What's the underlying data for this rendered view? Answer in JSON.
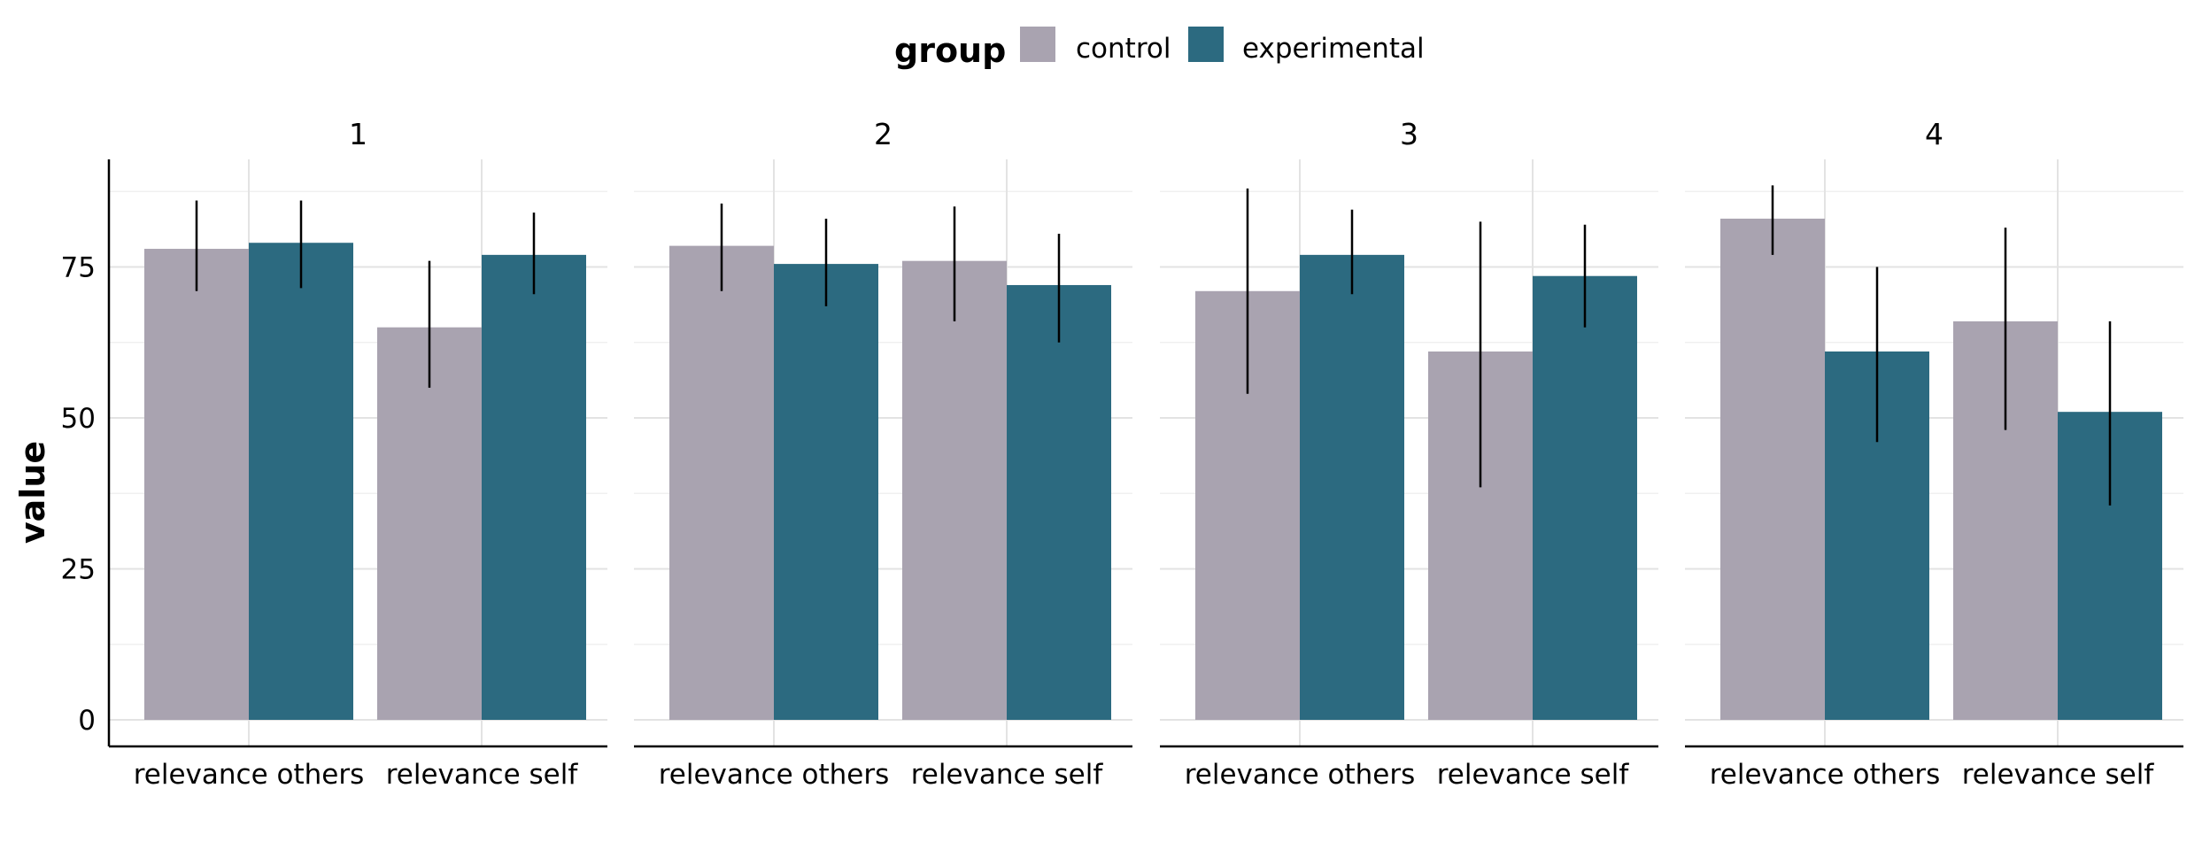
{
  "chart_data": {
    "type": "bar",
    "facets": [
      "1",
      "2",
      "3",
      "4"
    ],
    "categories": [
      "relevance others",
      "relevance self"
    ],
    "ylabel": "value",
    "ylim": [
      0,
      90
    ],
    "yticks": [
      0,
      25,
      50,
      75
    ],
    "grid": true,
    "legend": {
      "title": "group",
      "placement": "top",
      "entries": [
        {
          "name": "control",
          "color": "#a9a3b0"
        },
        {
          "name": "experimental",
          "color": "#2c6a80"
        }
      ]
    },
    "series": [
      {
        "name": "control",
        "color": "#a9a3b0",
        "values": [
          [
            78,
            65
          ],
          [
            78.5,
            76
          ],
          [
            71,
            61
          ],
          [
            83,
            66
          ]
        ],
        "error_low": [
          [
            71,
            55
          ],
          [
            71,
            66
          ],
          [
            54,
            38.5
          ],
          [
            77,
            48
          ]
        ],
        "error_high": [
          [
            86,
            76
          ],
          [
            85.5,
            85
          ],
          [
            88,
            82.5
          ],
          [
            88.5,
            81.5
          ]
        ]
      },
      {
        "name": "experimental",
        "color": "#2c6a80",
        "values": [
          [
            79,
            77
          ],
          [
            75.5,
            72
          ],
          [
            77,
            73.5
          ],
          [
            61,
            51
          ]
        ],
        "error_low": [
          [
            71.5,
            70.5
          ],
          [
            68.5,
            62.5
          ],
          [
            70.5,
            65
          ],
          [
            46,
            35.5
          ]
        ],
        "error_high": [
          [
            86,
            84
          ],
          [
            83,
            80.5
          ],
          [
            84.5,
            82
          ],
          [
            75,
            66
          ]
        ]
      }
    ]
  }
}
